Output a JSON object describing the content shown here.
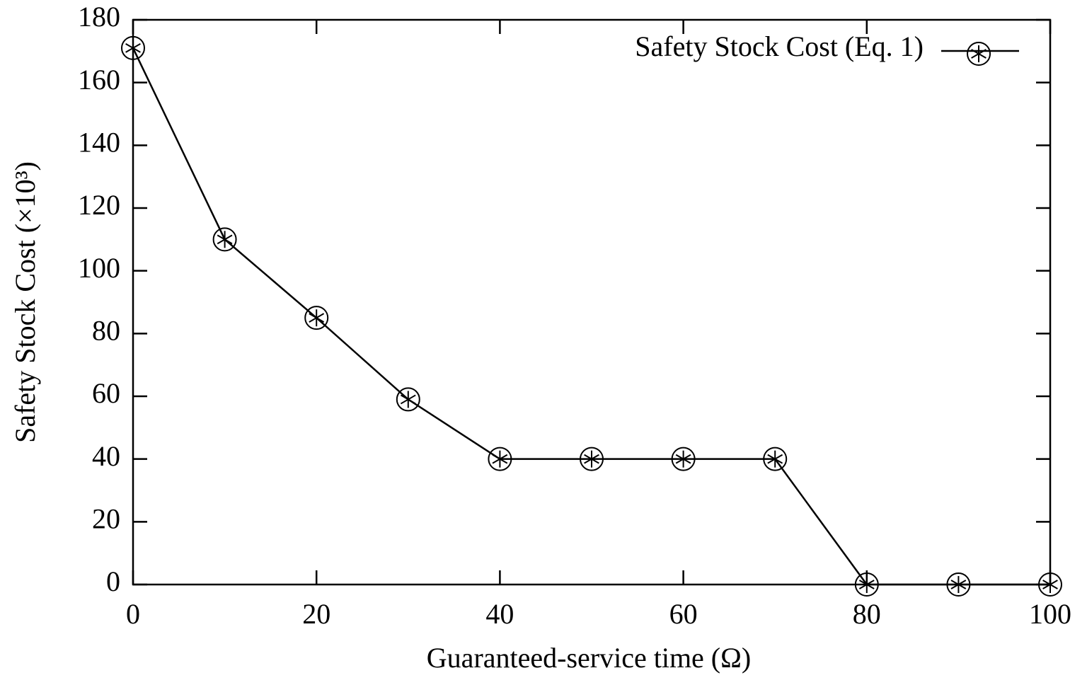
{
  "chart_data": {
    "type": "line",
    "xlabel": "Guaranteed-service time (Ω)",
    "ylabel": "Safety Stock Cost (×10³)",
    "x": [
      0,
      10,
      20,
      30,
      40,
      50,
      60,
      70,
      80,
      90,
      100
    ],
    "series": [
      {
        "name": "Safety Stock Cost (Eq. 1)",
        "color": "#000000",
        "values": [
          171,
          110,
          85,
          59,
          40,
          40,
          40,
          40,
          0,
          0,
          0
        ]
      }
    ],
    "xlim": [
      0,
      100
    ],
    "xticks": [
      0,
      20,
      40,
      60,
      80,
      100
    ],
    "ylim": [
      0,
      180
    ],
    "yticks": [
      0,
      20,
      40,
      60,
      80,
      100,
      120,
      140,
      160,
      180
    ],
    "legend": "upper right",
    "grid": false
  }
}
